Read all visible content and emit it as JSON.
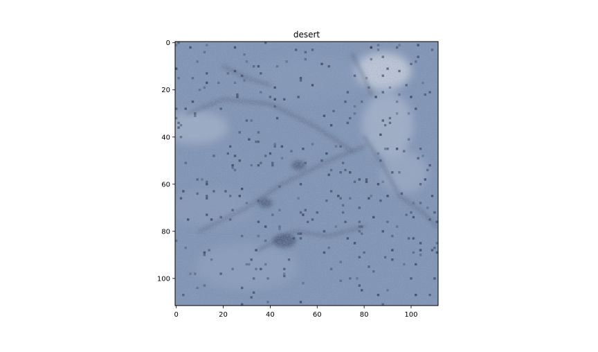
{
  "figure": {
    "title": "desert",
    "image_size": [
      112,
      112
    ],
    "image_description": "Low-resolution blue-grey sandy / icy terrain texture with diagonal streaks, scattered dark specks and a lighter patch near the top-right.",
    "colors": {
      "base": "#8195b6",
      "light_patch": "#c7cfdc",
      "dark_streak": "#52607d",
      "speck": "#3c4864"
    }
  },
  "axes": {
    "x_ticks": [
      "0",
      "20",
      "40",
      "60",
      "80",
      "100"
    ],
    "y_ticks": [
      "0",
      "20",
      "40",
      "60",
      "80",
      "100"
    ],
    "x_range": [
      -0.5,
      111.5
    ],
    "y_range": [
      -0.5,
      111.5
    ],
    "y_inverted": true
  }
}
